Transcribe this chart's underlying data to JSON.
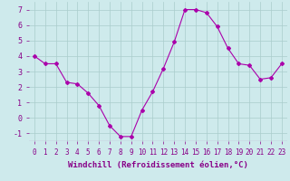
{
  "x": [
    0,
    1,
    2,
    3,
    4,
    5,
    6,
    7,
    8,
    9,
    10,
    11,
    12,
    13,
    14,
    15,
    16,
    17,
    18,
    19,
    20,
    21,
    22,
    23
  ],
  "y": [
    4.0,
    3.5,
    3.5,
    2.3,
    2.2,
    1.6,
    0.8,
    -0.5,
    -1.2,
    -1.2,
    0.5,
    1.7,
    3.2,
    4.9,
    7.0,
    7.0,
    6.8,
    5.9,
    4.5,
    3.5,
    3.4,
    2.5,
    2.6,
    3.5
  ],
  "line_color": "#aa00aa",
  "marker": "D",
  "marker_size": 2,
  "xlabel": "Windchill (Refroidissement éolien,°C)",
  "xlim": [
    -0.5,
    23.5
  ],
  "ylim": [
    -1.5,
    7.5
  ],
  "yticks": [
    -1,
    0,
    1,
    2,
    3,
    4,
    5,
    6,
    7
  ],
  "bg_color": "#ceeaec",
  "grid_color": "#aacccc",
  "label_color": "#880088",
  "tick_color": "#880088",
  "tick_fontsize": 5.5,
  "xlabel_fontsize": 6.5
}
